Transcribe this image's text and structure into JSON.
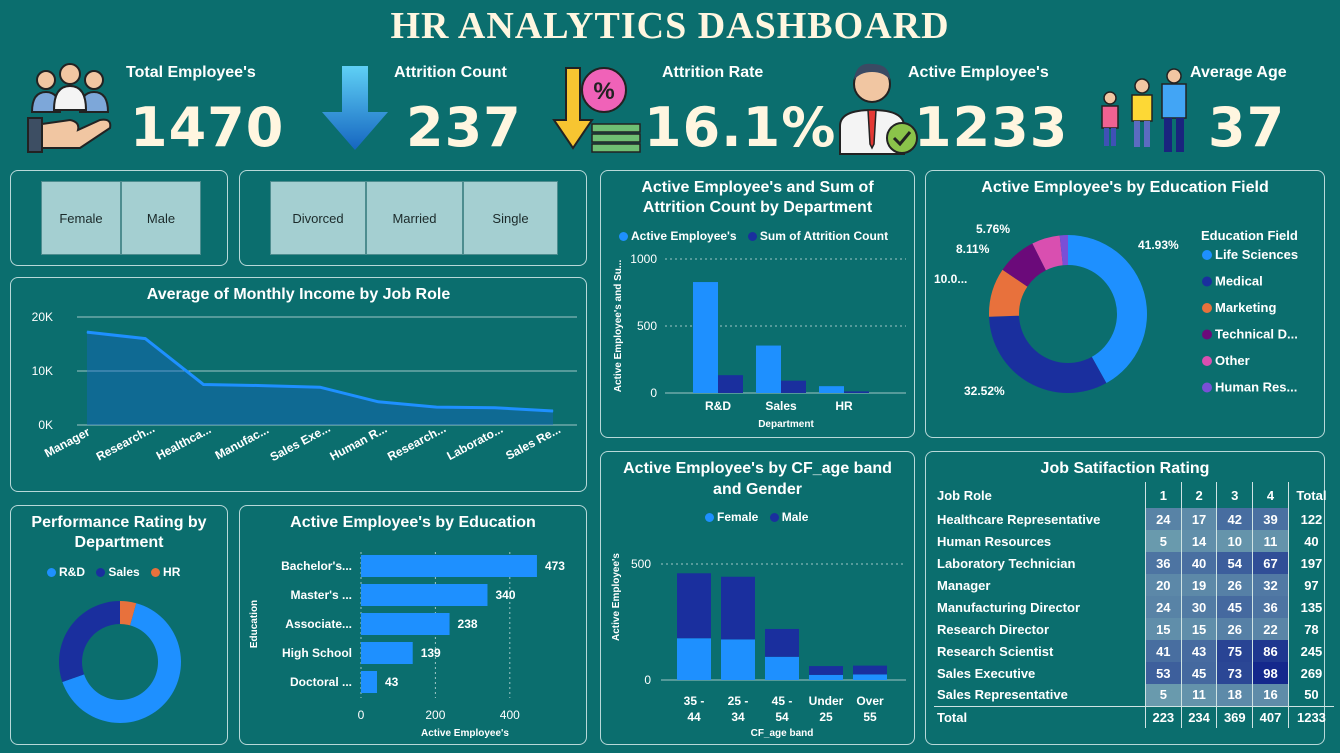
{
  "title": "HR ANALYTICS DASHBOARD",
  "kpis": {
    "total_employees": {
      "label": "Total Employee's",
      "value": "1470"
    },
    "attrition_count": {
      "label": "Attrition Count",
      "value": "237"
    },
    "attrition_rate": {
      "label": "Attrition Rate",
      "value": "16.1%"
    },
    "active_employees": {
      "label": "Active Employee's",
      "value": "1233"
    },
    "average_age": {
      "label": "Average Age",
      "value": "37"
    }
  },
  "slicers": {
    "gender": [
      "Female",
      "Male"
    ],
    "marital": [
      "Divorced",
      "Married",
      "Single"
    ]
  },
  "colors": {
    "primary": "#1e90ff",
    "dark": "#1a2f9e",
    "orange": "#e8713c",
    "purple": "#6b0a7a",
    "pink": "#d94fb0",
    "violet": "#7a4fd6"
  },
  "income_chart": {
    "title": "Average of Monthly Income by Job Role",
    "y_ticks": [
      "20K",
      "10K",
      "0K"
    ],
    "categories": [
      "Manager",
      "Research...",
      "Healthca...",
      "Manufac...",
      "Sales Exe...",
      "Human R...",
      "Research...",
      "Laborato...",
      "Sales Re..."
    ]
  },
  "dept_chart": {
    "title": "Active Employee's and Sum of Attrition Count by Department",
    "title_line1": "Active Employee's and Sum of",
    "title_line2": "Attrition Count by Department",
    "legend": [
      "Active Employee's",
      "Sum of Attrition Count"
    ],
    "ylabel": "Active Employee's and Su...",
    "xlabel": "Department",
    "y_ticks": [
      "1000",
      "500",
      "0"
    ]
  },
  "edu_field_chart": {
    "title": "Active Employee's by Education Field",
    "legend_title": "Education Field",
    "legend": [
      "Life Sciences",
      "Medical",
      "Marketing",
      "Technical D...",
      "Other",
      "Human Res..."
    ],
    "labels": {
      "life": "41.93%",
      "medical": "32.52%",
      "marketing": "10.0...",
      "technical": "8.11%",
      "other": "5.76%"
    }
  },
  "perf_chart": {
    "title_line1": "Performance Rating by",
    "title_line2": "Department",
    "legend": [
      "R&D",
      "Sales",
      "HR"
    ]
  },
  "education_chart": {
    "title": "Active Employee's by Education",
    "ylabel": "Education",
    "xlabel": "Active Employee's",
    "x_ticks": [
      "0",
      "200",
      "400"
    ]
  },
  "age_chart": {
    "title_line1": "Active Employee's by CF_age band",
    "title_line2": "and Gender",
    "legend": [
      "Female",
      "Male"
    ],
    "ylabel": "Active Employee's",
    "xlabel": "CF_age band",
    "y_ticks": [
      "500",
      "0"
    ]
  },
  "job_sat": {
    "title": "Job Satifaction Rating",
    "headers": [
      "Job Role",
      "1",
      "2",
      "3",
      "4",
      "Total"
    ],
    "rows": [
      [
        "Healthcare Representative",
        "24",
        "17",
        "42",
        "39",
        "122"
      ],
      [
        "Human Resources",
        "5",
        "14",
        "10",
        "11",
        "40"
      ],
      [
        "Laboratory Technician",
        "36",
        "40",
        "54",
        "67",
        "197"
      ],
      [
        "Manager",
        "20",
        "19",
        "26",
        "32",
        "97"
      ],
      [
        "Manufacturing Director",
        "24",
        "30",
        "45",
        "36",
        "135"
      ],
      [
        "Research Director",
        "15",
        "15",
        "26",
        "22",
        "78"
      ],
      [
        "Research Scientist",
        "41",
        "43",
        "75",
        "86",
        "245"
      ],
      [
        "Sales Executive",
        "53",
        "45",
        "73",
        "98",
        "269"
      ],
      [
        "Sales Representative",
        "5",
        "11",
        "18",
        "16",
        "50"
      ]
    ],
    "total": [
      "Total",
      "223",
      "234",
      "369",
      "407",
      "1233"
    ]
  },
  "chart_data": [
    {
      "type": "area",
      "title": "Average of Monthly Income by Job Role",
      "categories": [
        "Manager",
        "Research...",
        "Healthca...",
        "Manufac...",
        "Sales Exe...",
        "Human R...",
        "Research...",
        "Laborato...",
        "Sales Re..."
      ],
      "values": [
        17200,
        16000,
        7500,
        7300,
        7000,
        4300,
        3300,
        3200,
        2600
      ],
      "ylim": [
        0,
        20000
      ]
    },
    {
      "type": "bar",
      "title": "Active Employee's and Sum of Attrition Count by Department",
      "categories": [
        "R&D",
        "Sales",
        "HR"
      ],
      "series": [
        {
          "name": "Active Employee's",
          "values": [
            828,
            354,
            51
          ]
        },
        {
          "name": "Sum of Attrition Count",
          "values": [
            133,
            92,
            12
          ]
        }
      ],
      "xlabel": "Department",
      "ylim": [
        0,
        1000
      ]
    },
    {
      "type": "pie",
      "title": "Active Employee's by Education Field",
      "categories": [
        "Life Sciences",
        "Medical",
        "Marketing",
        "Technical D...",
        "Other",
        "Human Res..."
      ],
      "values": [
        41.93,
        32.52,
        10.0,
        8.11,
        5.76,
        1.68
      ]
    },
    {
      "type": "pie",
      "title": "Performance Rating by Department",
      "categories": [
        "R&D",
        "Sales",
        "HR"
      ],
      "values": [
        65.4,
        30.3,
        4.3
      ]
    },
    {
      "type": "bar",
      "title": "Active Employee's by Education",
      "categories": [
        "Bachelor's...",
        "Master's ...",
        "Associate...",
        "High School",
        "Doctoral ..."
      ],
      "values": [
        473,
        340,
        238,
        139,
        43
      ],
      "xlabel": "Active Employee's",
      "ylabel": "Education",
      "xlim": [
        0,
        500
      ]
    },
    {
      "type": "bar",
      "title": "Active Employee's by CF_age band and Gender",
      "categories": [
        "35 - 44",
        "25 - 34",
        "45 - 54",
        "Under 25",
        "Over 55"
      ],
      "series": [
        {
          "name": "Female",
          "values": [
            180,
            175,
            100,
            22,
            24
          ]
        },
        {
          "name": "Male",
          "values": [
            280,
            270,
            120,
            38,
            38
          ]
        }
      ],
      "xlabel": "CF_age band",
      "ylabel": "Active Employee's",
      "ylim": [
        0,
        600
      ]
    }
  ]
}
